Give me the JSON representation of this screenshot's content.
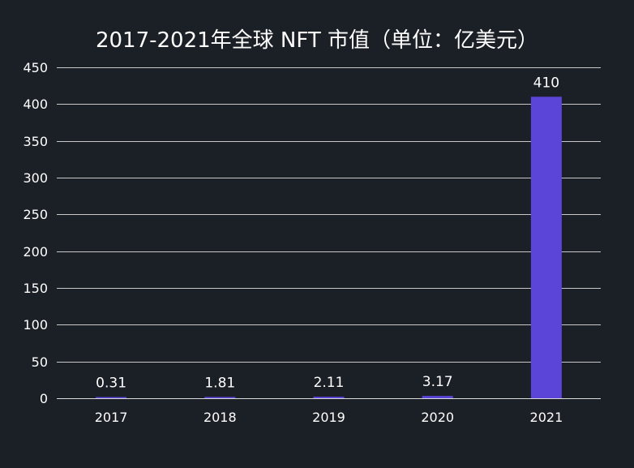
{
  "colors": {
    "background": "#1b1f26",
    "bar": "#5b45d9",
    "text": "#ffffff",
    "gridline": "#e6e6e6"
  },
  "chart_data": {
    "type": "bar",
    "title": "2017-2021年全球 NFT 市值（单位：亿美元）",
    "xlabel": "",
    "ylabel": "",
    "categories": [
      "2017",
      "2018",
      "2019",
      "2020",
      "2021"
    ],
    "values": [
      0.31,
      1.81,
      2.11,
      3.17,
      410
    ],
    "value_labels": [
      "0.31",
      "1.81",
      "2.11",
      "3.17",
      "410"
    ],
    "ylim": [
      0,
      450
    ],
    "yticks": [
      0,
      50,
      100,
      150,
      200,
      250,
      300,
      350,
      400,
      450
    ],
    "grid": true,
    "legend": "none"
  }
}
